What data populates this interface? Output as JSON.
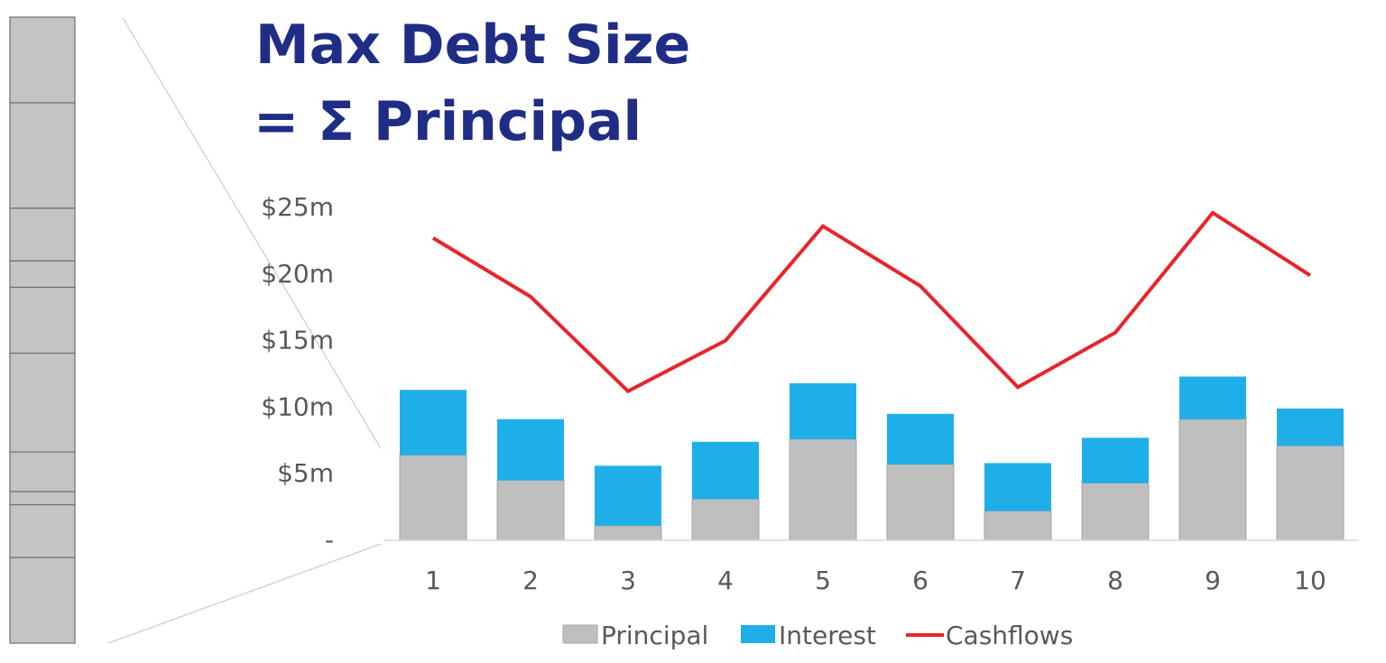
{
  "title": {
    "line1": "Max Debt Size",
    "line2": "= Σ Principal"
  },
  "colors": {
    "title": "#1f2d86",
    "principal": "#bfbfbf",
    "interest": "#1eafe9",
    "cashflows": "#e8242b",
    "stack_block": "#c4c4c4",
    "stack_outline": "#6e6e6e",
    "axis_text": "#595959",
    "connector": "#d4d4d4"
  },
  "stack_segments": [
    13,
    16,
    8,
    4,
    10,
    15,
    6,
    2,
    8,
    13
  ],
  "chart_data": {
    "type": "bar",
    "stacked": true,
    "categories": [
      "1",
      "2",
      "3",
      "4",
      "5",
      "6",
      "7",
      "8",
      "9",
      "10"
    ],
    "series": [
      {
        "name": "Principal",
        "type": "bar",
        "values": [
          6.4,
          4.5,
          1.1,
          3.1,
          7.6,
          5.7,
          2.2,
          4.3,
          9.1,
          7.1
        ]
      },
      {
        "name": "Interest",
        "type": "bar",
        "values": [
          4.9,
          4.6,
          4.5,
          4.3,
          4.2,
          3.8,
          3.6,
          3.4,
          3.2,
          2.8
        ]
      },
      {
        "name": "Cashflows",
        "type": "line",
        "values": [
          22.7,
          18.3,
          11.2,
          15.0,
          23.6,
          19.1,
          11.5,
          15.6,
          24.6,
          19.9
        ]
      }
    ],
    "yticks": [
      {
        "value": 0,
        "label": "-"
      },
      {
        "value": 5,
        "label": "$5m"
      },
      {
        "value": 10,
        "label": "$10m"
      },
      {
        "value": 15,
        "label": "$15m"
      },
      {
        "value": 20,
        "label": "$20m"
      },
      {
        "value": 25,
        "label": "$25m"
      }
    ],
    "ylim": [
      0,
      25
    ],
    "grid": false,
    "legend": "bottom",
    "legend_entries": [
      "Principal",
      "Interest",
      "Cashflows"
    ]
  }
}
